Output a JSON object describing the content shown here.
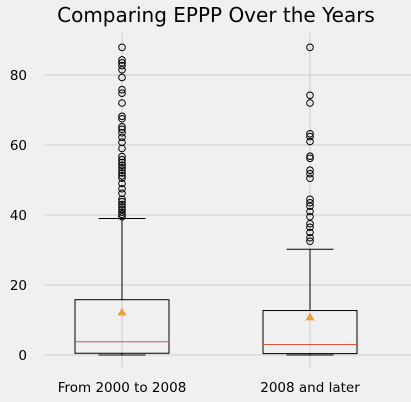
{
  "chart_data": {
    "type": "box",
    "title": "Comparing EPPP Over the Years",
    "xlabel": "",
    "ylabel": "",
    "categories": [
      "From 2000 to 2008",
      "2008 and later"
    ],
    "ylim": [
      -4,
      92
    ],
    "yticks": [
      0,
      20,
      40,
      60,
      80
    ],
    "grid": true,
    "style": {
      "background": "#f0f0f0",
      "grid_color": "#cbcbcb",
      "box_color": "#000000",
      "median_color": "#e5533d",
      "mean_color": "#e5a339"
    },
    "boxes": [
      {
        "name": "From 2000 to 2008",
        "whisker_low": 0,
        "q1": 0.5,
        "median": 3.8,
        "q3": 15.8,
        "whisker_high": 39,
        "mean": 12.3,
        "outliers": [
          39.5,
          40.2,
          40.8,
          41.6,
          42.3,
          43.0,
          43.8,
          44.5,
          46.2,
          47.5,
          49.0,
          50.5,
          51.2,
          52.0,
          52.8,
          53.5,
          54.2,
          55.0,
          55.8,
          56.7,
          59.0,
          60.8,
          62.2,
          63.5,
          64.5,
          65.2,
          67.5,
          68.2,
          72.0,
          74.8,
          75.8,
          79.3,
          81.5,
          82.7,
          83.5,
          84.3,
          87.9
        ]
      },
      {
        "name": "2008 and later",
        "whisker_low": 0,
        "q1": 0.4,
        "median": 3.0,
        "q3": 12.7,
        "whisker_high": 30.2,
        "mean": 10.9,
        "outliers": [
          32.5,
          33.5,
          35.0,
          36.5,
          37.5,
          39.5,
          41.0,
          42.5,
          43.5,
          44.5,
          50.5,
          51.8,
          52.8,
          56.2,
          56.8,
          61.0,
          62.4,
          63.2,
          72.0,
          74.2,
          87.9
        ]
      }
    ]
  }
}
